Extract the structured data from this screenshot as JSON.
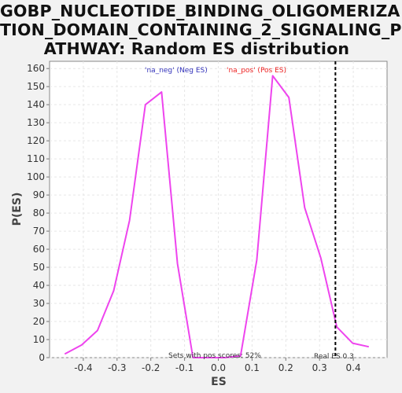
{
  "chart_data": {
    "type": "line",
    "title_lines": [
      "GOBP_NUCLEOTIDE_BINDING_OLIGOMERIZA",
      "TION_DOMAIN_CONTAINING_2_SIGNALING_P",
      "ATHWAY: Random ES distribution"
    ],
    "xlabel": "ES",
    "ylabel": "P(ES)",
    "xlim": [
      -0.5,
      0.5
    ],
    "ylim": [
      0,
      164
    ],
    "xticks": [
      -0.4,
      -0.3,
      -0.2,
      -0.1,
      0.0,
      0.1,
      0.2,
      0.3,
      0.4
    ],
    "xtick_labels": [
      "-0.4",
      "-0.3",
      "-0.2",
      "-0.1",
      "0.0",
      "0.1",
      "0.2",
      "0.3",
      "0.4"
    ],
    "yticks": [
      0,
      10,
      20,
      30,
      40,
      50,
      60,
      70,
      80,
      90,
      100,
      110,
      120,
      130,
      140,
      150,
      160
    ],
    "grid": true,
    "series": [
      {
        "name": "",
        "color": "#ee44ee",
        "x": [
          -0.455,
          -0.405,
          -0.358,
          -0.31,
          -0.263,
          -0.216,
          -0.168,
          -0.121,
          -0.075,
          -0.027,
          0.02,
          0.066,
          0.114,
          0.161,
          0.209,
          0.256,
          0.304,
          0.351,
          0.398,
          0.446
        ],
        "y": [
          2,
          7,
          15,
          37,
          76,
          140,
          147,
          52,
          0,
          0,
          0,
          1,
          54,
          156,
          144,
          83,
          55,
          17,
          8,
          6
        ]
      }
    ],
    "legend": [
      {
        "label": "'na_neg' (Neg ES)",
        "color": "#3333bb"
      },
      {
        "label": "'na_pos' (Pos ES)",
        "color": "#ee2222"
      }
    ],
    "real_es": {
      "x": 0.347,
      "label": "Real ES 0.3"
    },
    "note": "Sets with pos scores: 52%"
  }
}
